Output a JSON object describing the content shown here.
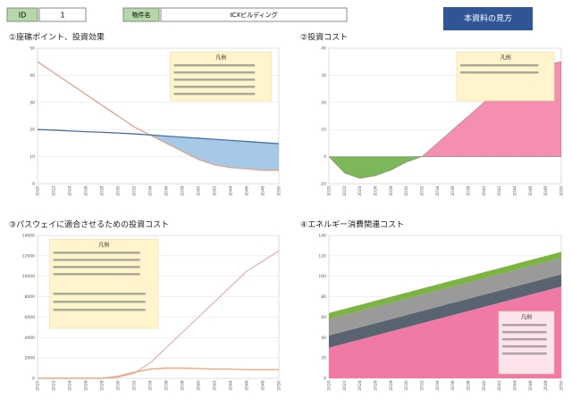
{
  "header": {
    "id_label": "ID",
    "id_value": "1",
    "name_label": "物件名",
    "name_value": "ICXビルディング",
    "button": "本資料の見方"
  },
  "chart_data": [
    {
      "type": "line",
      "title": "①座礁ポイント、投資効果",
      "categories": [
        "2020",
        "2022",
        "2024",
        "2026",
        "2028",
        "2030",
        "2032",
        "2034",
        "2036",
        "2038",
        "2040",
        "2042",
        "2044",
        "2046",
        "2048",
        "2050"
      ],
      "ylim": [
        0,
        50
      ],
      "yticks": [
        0,
        10,
        20,
        30,
        40,
        50
      ],
      "fill_between": true,
      "fill_color": "#9dc3e6",
      "legend_title": "凡例",
      "series": [
        {
          "color": "#d9a38f",
          "values": [
            45,
            41,
            37,
            33,
            29,
            25,
            21,
            18,
            15,
            12,
            9,
            7,
            6,
            5.5,
            5,
            5
          ]
        },
        {
          "color": "#4a6fa5",
          "values": [
            20,
            19.8,
            19.5,
            19.2,
            19,
            18.7,
            18.4,
            18,
            17.6,
            17.2,
            16.8,
            16.4,
            16,
            15.6,
            15.2,
            14.8
          ]
        }
      ]
    },
    {
      "type": "area",
      "title": "②投資コスト",
      "categories": [
        "2020",
        "2022",
        "2024",
        "2026",
        "2028",
        "2030",
        "2032",
        "2034",
        "2036",
        "2038",
        "2040",
        "2042",
        "2044",
        "2046",
        "2048",
        "2050"
      ],
      "ylim": [
        -10,
        40
      ],
      "yticks": [
        -10,
        0,
        10,
        20,
        30,
        40
      ],
      "positive_color": "#f48fb1",
      "negative_color": "#7cb85a",
      "legend_title": "凡例",
      "values": [
        0,
        -6,
        -8,
        -7,
        -5,
        -2,
        0,
        5,
        10,
        15,
        20,
        25,
        30,
        33,
        34,
        35
      ]
    },
    {
      "type": "line",
      "title": "③パスウェイに適合させるための投資コスト",
      "categories": [
        "2020",
        "2022",
        "2024",
        "2026",
        "2028",
        "2030",
        "2032",
        "2034",
        "2036",
        "2038",
        "2040",
        "2042",
        "2044",
        "2046",
        "2048",
        "2050"
      ],
      "ylim": [
        0,
        14000
      ],
      "yticks": [
        0,
        2000,
        4000,
        6000,
        8000,
        10000,
        12000,
        14000
      ],
      "legend_title": "凡例",
      "series": [
        {
          "color": "#e3b5b5",
          "values": [
            0,
            0,
            0,
            0,
            0,
            100,
            500,
            1500,
            3000,
            4500,
            6000,
            7500,
            9000,
            10500,
            11500,
            12500
          ]
        },
        {
          "color": "#f0a070",
          "values": [
            0,
            0,
            0,
            0,
            0,
            200,
            600,
            900,
            1000,
            1000,
            950,
            900,
            900,
            850,
            850,
            850
          ]
        }
      ]
    },
    {
      "type": "stacked_area",
      "title": "④エネルギー消費関連コスト",
      "categories": [
        "2020",
        "2022",
        "2024",
        "2026",
        "2028",
        "2030",
        "2032",
        "2034",
        "2036",
        "2038",
        "2040",
        "2042",
        "2044",
        "2046",
        "2048",
        "2050"
      ],
      "ylim": [
        0,
        140
      ],
      "yticks": [
        0,
        20,
        40,
        60,
        80,
        100,
        120,
        140
      ],
      "legend_title": "凡例",
      "series": [
        {
          "color": "#f07aa5",
          "values": [
            30,
            34,
            38,
            42,
            46,
            50,
            54,
            58,
            62,
            66,
            70,
            74,
            78,
            82,
            86,
            90
          ]
        },
        {
          "color": "#5a6470",
          "values": [
            12,
            12,
            12,
            12,
            12,
            12,
            12,
            12,
            12,
            12,
            12,
            12,
            12,
            12,
            12,
            12
          ]
        },
        {
          "color": "#9a9a9a",
          "values": [
            16,
            16,
            16,
            16,
            16,
            16,
            16,
            16,
            16,
            16,
            16,
            16,
            16,
            16,
            16,
            16
          ]
        },
        {
          "color": "#7cb342",
          "values": [
            6,
            6,
            6,
            6,
            6,
            6,
            6,
            6,
            6,
            6,
            6,
            6,
            6,
            6,
            6,
            6
          ]
        }
      ]
    }
  ]
}
